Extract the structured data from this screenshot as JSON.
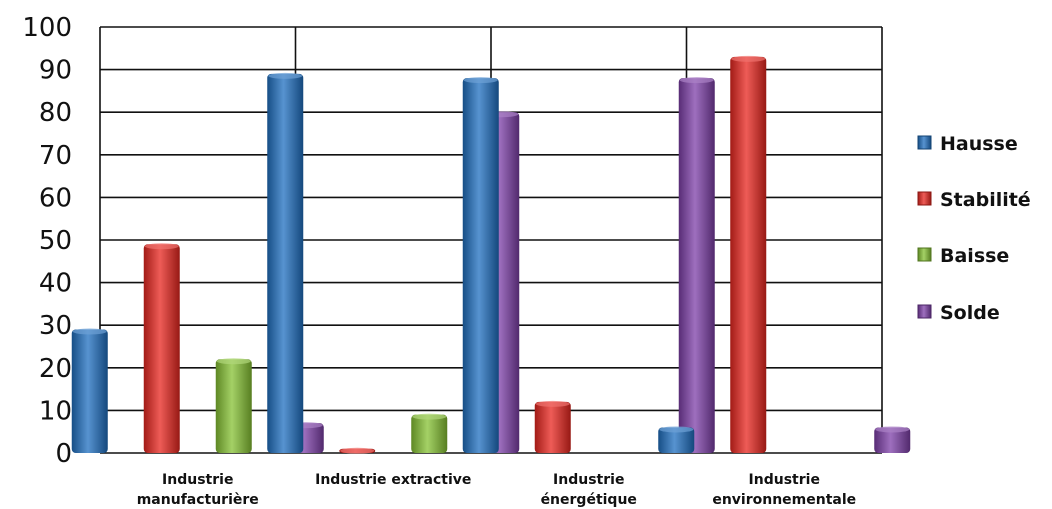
{
  "chart_data": {
    "type": "bar",
    "categories": [
      [
        "Industrie",
        "manufacturière"
      ],
      [
        "Industrie extractive"
      ],
      [
        "Industrie",
        "énergétique"
      ],
      [
        "Industrie",
        "environnementale"
      ]
    ],
    "series": [
      {
        "name": "Hausse",
        "color": "#1f6fc0",
        "values": [
          29,
          89,
          88,
          6
        ]
      },
      {
        "name": "Stabilité",
        "color": "#e8261f",
        "values": [
          49,
          1,
          12,
          93
        ]
      },
      {
        "name": "Baisse",
        "color": "#86c233",
        "values": [
          22,
          9,
          0,
          0
        ]
      },
      {
        "name": "Solde",
        "color": "#7d3fa8",
        "values": [
          7,
          80,
          88,
          6
        ]
      }
    ],
    "ylim": [
      0,
      100
    ],
    "yticks": [
      0,
      10,
      20,
      30,
      40,
      50,
      60,
      70,
      80,
      90,
      100
    ],
    "grid": true,
    "legend": "right"
  }
}
